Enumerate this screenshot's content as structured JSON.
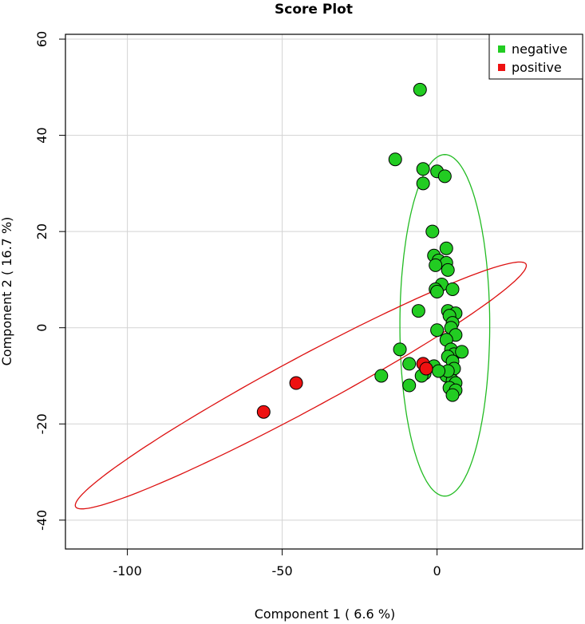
{
  "chart_data": {
    "type": "scatter",
    "title": "Score Plot",
    "xlabel": "Component 1 ( 6.6 %)",
    "ylabel": "Component 2 ( 16.7 %)",
    "xlim": [
      -120,
      47
    ],
    "ylim": [
      -46,
      61
    ],
    "xticks": [
      -100,
      -50,
      0
    ],
    "yticks": [
      -40,
      -20,
      0,
      20,
      40,
      60
    ],
    "grid": true,
    "legend_position": "top-right",
    "colors": {
      "negative": "#22cc22",
      "positive": "#ee1111",
      "grid": "#d3d3d3",
      "ellipse_negative": "#22bb22",
      "ellipse_positive": "#dd1111"
    },
    "series": [
      {
        "name": "negative",
        "points": [
          [
            -5.5,
            49.5
          ],
          [
            -13.5,
            35
          ],
          [
            -4.5,
            33
          ],
          [
            -4.5,
            30
          ],
          [
            0,
            32.5
          ],
          [
            2.5,
            31.5
          ],
          [
            -1.5,
            20
          ],
          [
            3,
            16.5
          ],
          [
            -1,
            15
          ],
          [
            0.5,
            14
          ],
          [
            3,
            13.5
          ],
          [
            -0.5,
            13
          ],
          [
            3.5,
            12
          ],
          [
            1.5,
            9
          ],
          [
            -0.5,
            8
          ],
          [
            0,
            7.5
          ],
          [
            5,
            8
          ],
          [
            -6,
            3.5
          ],
          [
            3.5,
            3.5
          ],
          [
            6,
            3
          ],
          [
            4,
            2.5
          ],
          [
            5,
            1
          ],
          [
            0,
            -0.5
          ],
          [
            4.5,
            0
          ],
          [
            6,
            -1.5
          ],
          [
            3,
            -2.5
          ],
          [
            -12,
            -4.5
          ],
          [
            4.5,
            -4.5
          ],
          [
            5.5,
            -5.5
          ],
          [
            8,
            -5
          ],
          [
            3.5,
            -6
          ],
          [
            5,
            -7
          ],
          [
            -9,
            -7.5
          ],
          [
            -1,
            -8
          ],
          [
            5.5,
            -8.5
          ],
          [
            -4,
            -9.5
          ],
          [
            -5,
            -10
          ],
          [
            3,
            -10
          ],
          [
            -18,
            -10
          ],
          [
            5,
            -11
          ],
          [
            6,
            -11.5
          ],
          [
            -9,
            -12
          ],
          [
            4,
            -12.5
          ],
          [
            6,
            -13
          ],
          [
            5,
            -14
          ],
          [
            3.5,
            -9
          ],
          [
            0.5,
            -9
          ]
        ]
      },
      {
        "name": "positive",
        "points": [
          [
            -56,
            -17.5
          ],
          [
            -45.5,
            -11.5
          ],
          [
            -4.5,
            -7.5
          ],
          [
            -3.5,
            -8.5
          ]
        ]
      }
    ],
    "ellipses": [
      {
        "series": "negative",
        "center": [
          2.5,
          0.5
        ],
        "x_radius": 14.5,
        "y_radius": 35.5,
        "rotation_deg": 0
      },
      {
        "series": "positive",
        "center": [
          -44,
          -12
        ],
        "x_radius": 77,
        "y_radius": 5.8,
        "rotation_deg": 19
      }
    ]
  }
}
